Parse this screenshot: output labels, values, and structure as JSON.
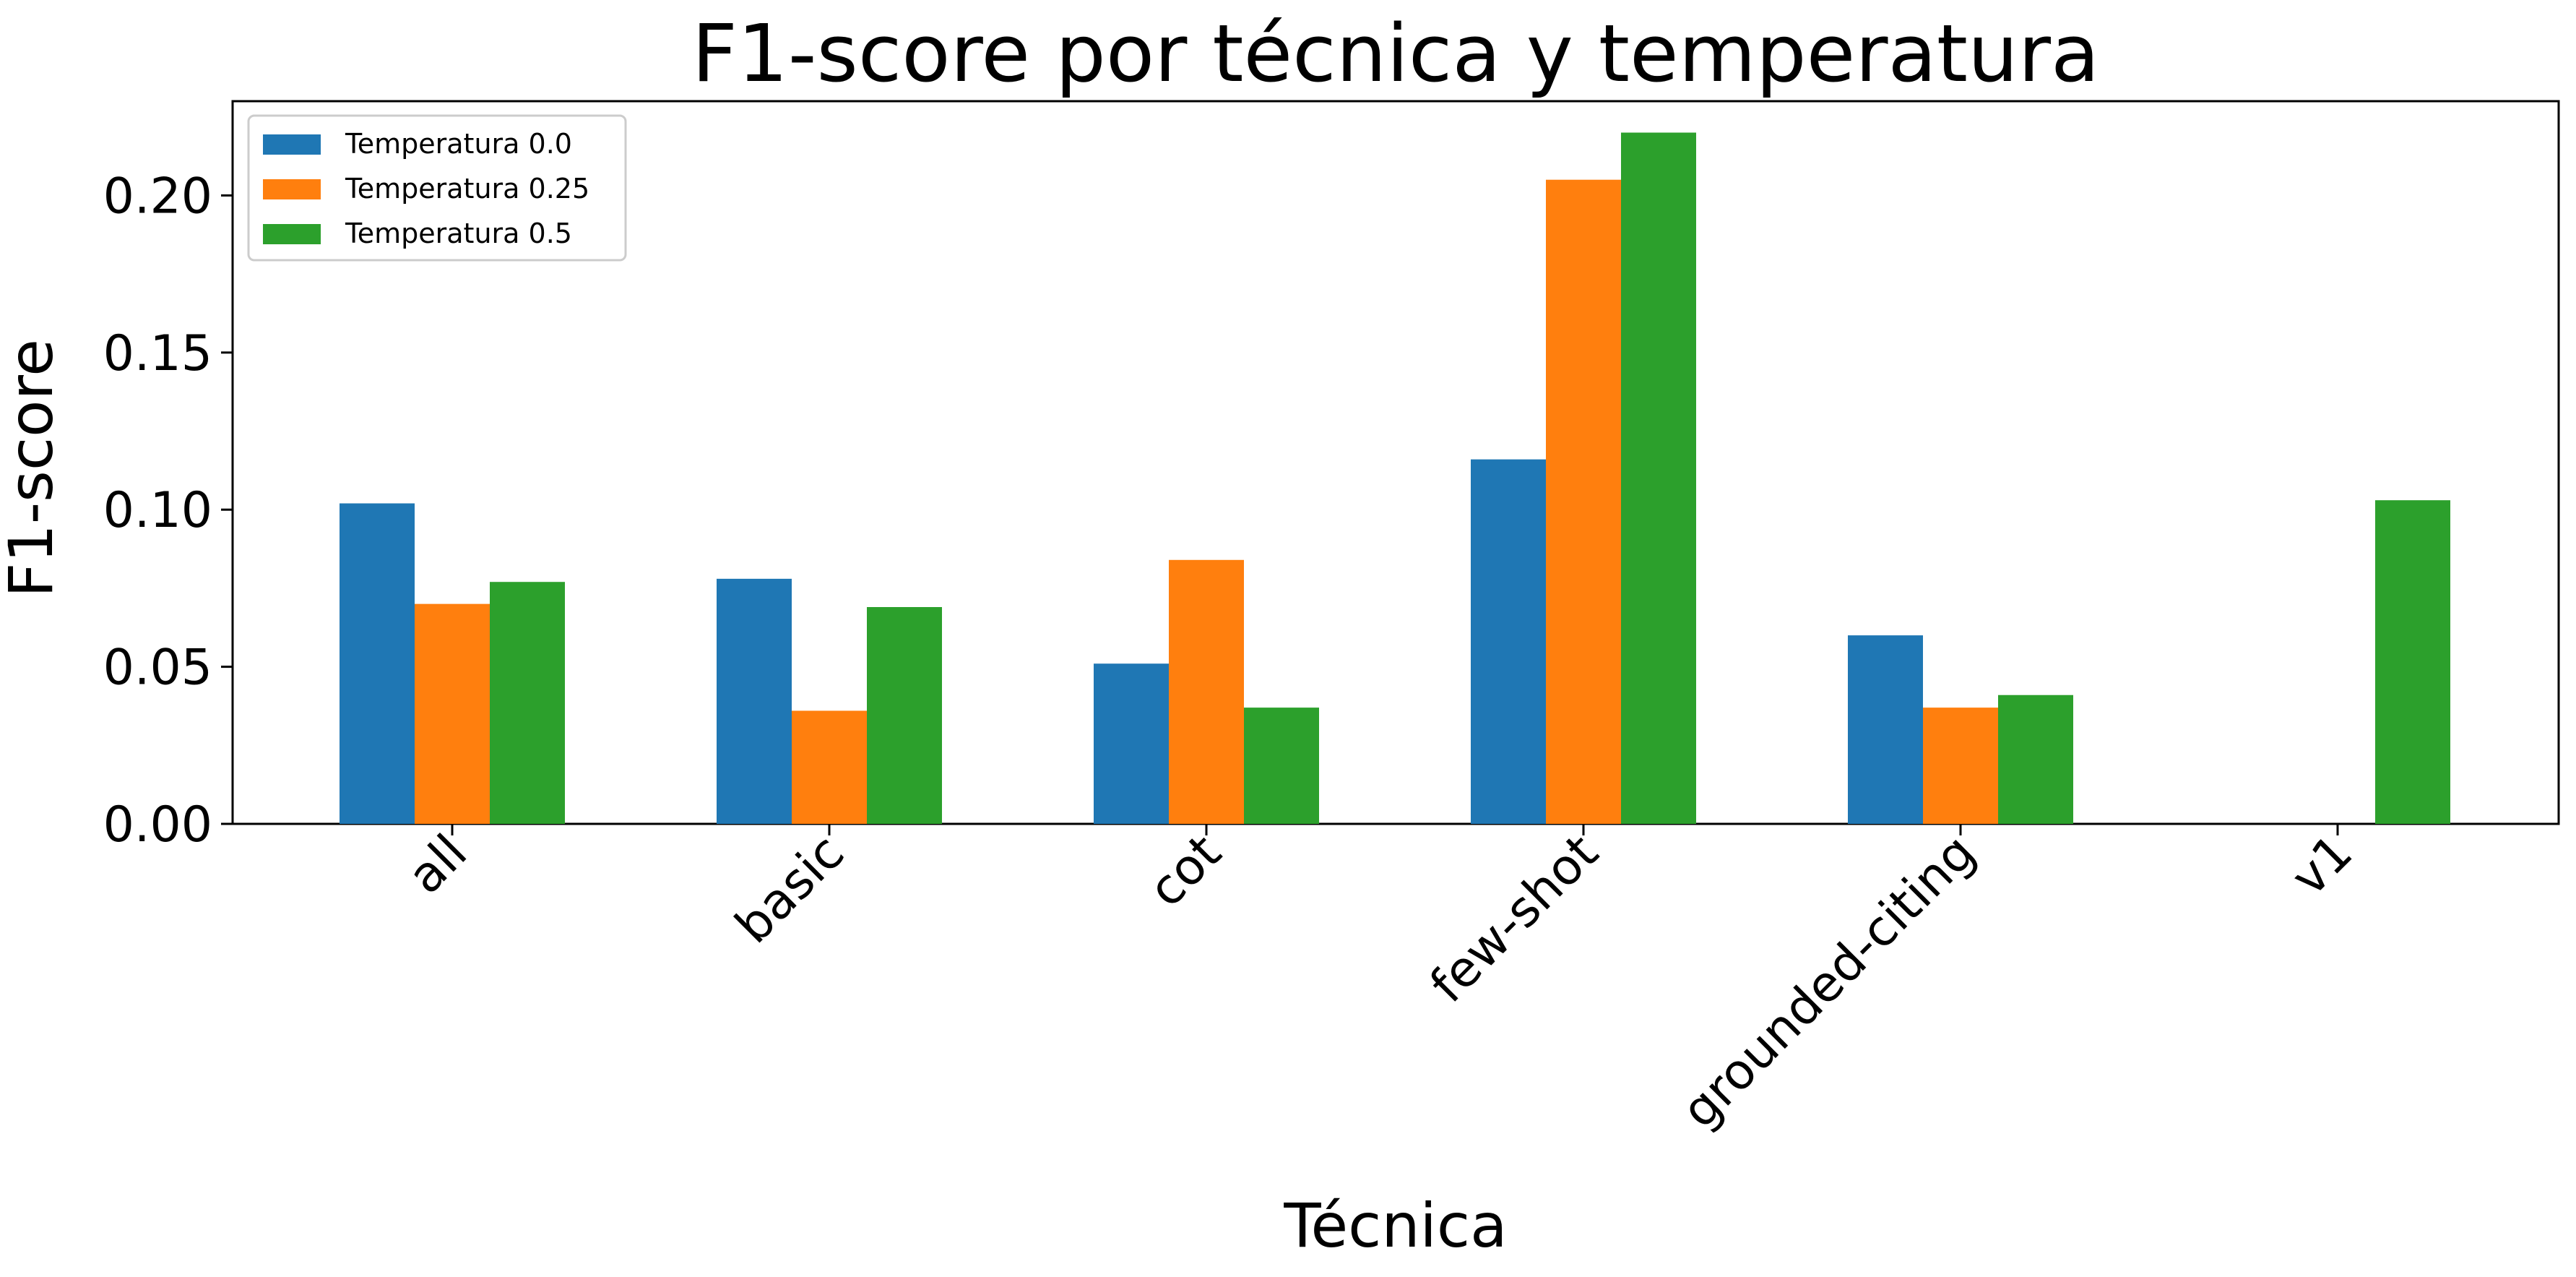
{
  "chart_data": {
    "type": "bar",
    "title": "F1-score por técnica y temperatura",
    "xlabel": "Técnica",
    "ylabel": "F1-score",
    "categories": [
      "all",
      "basic",
      "cot",
      "few-shot",
      "grounded-citing",
      "v1"
    ],
    "series": [
      {
        "name": "Temperatura 0.0",
        "color": "#1f77b4",
        "values": [
          0.102,
          0.078,
          0.051,
          0.116,
          0.06,
          0.0
        ]
      },
      {
        "name": "Temperatura 0.25",
        "color": "#ff7f0e",
        "values": [
          0.07,
          0.036,
          0.084,
          0.205,
          0.037,
          0.0
        ]
      },
      {
        "name": "Temperatura 0.5",
        "color": "#2ca02c",
        "values": [
          0.077,
          0.069,
          0.037,
          0.22,
          0.041,
          0.103
        ]
      }
    ],
    "ylim": [
      0,
      0.23
    ],
    "yticks": [
      0.0,
      0.05,
      0.1,
      0.15,
      0.2
    ],
    "ytick_labels": [
      "0.00",
      "0.05",
      "0.10",
      "0.15",
      "0.20"
    ],
    "grid": false,
    "legend_position": "top-left"
  }
}
